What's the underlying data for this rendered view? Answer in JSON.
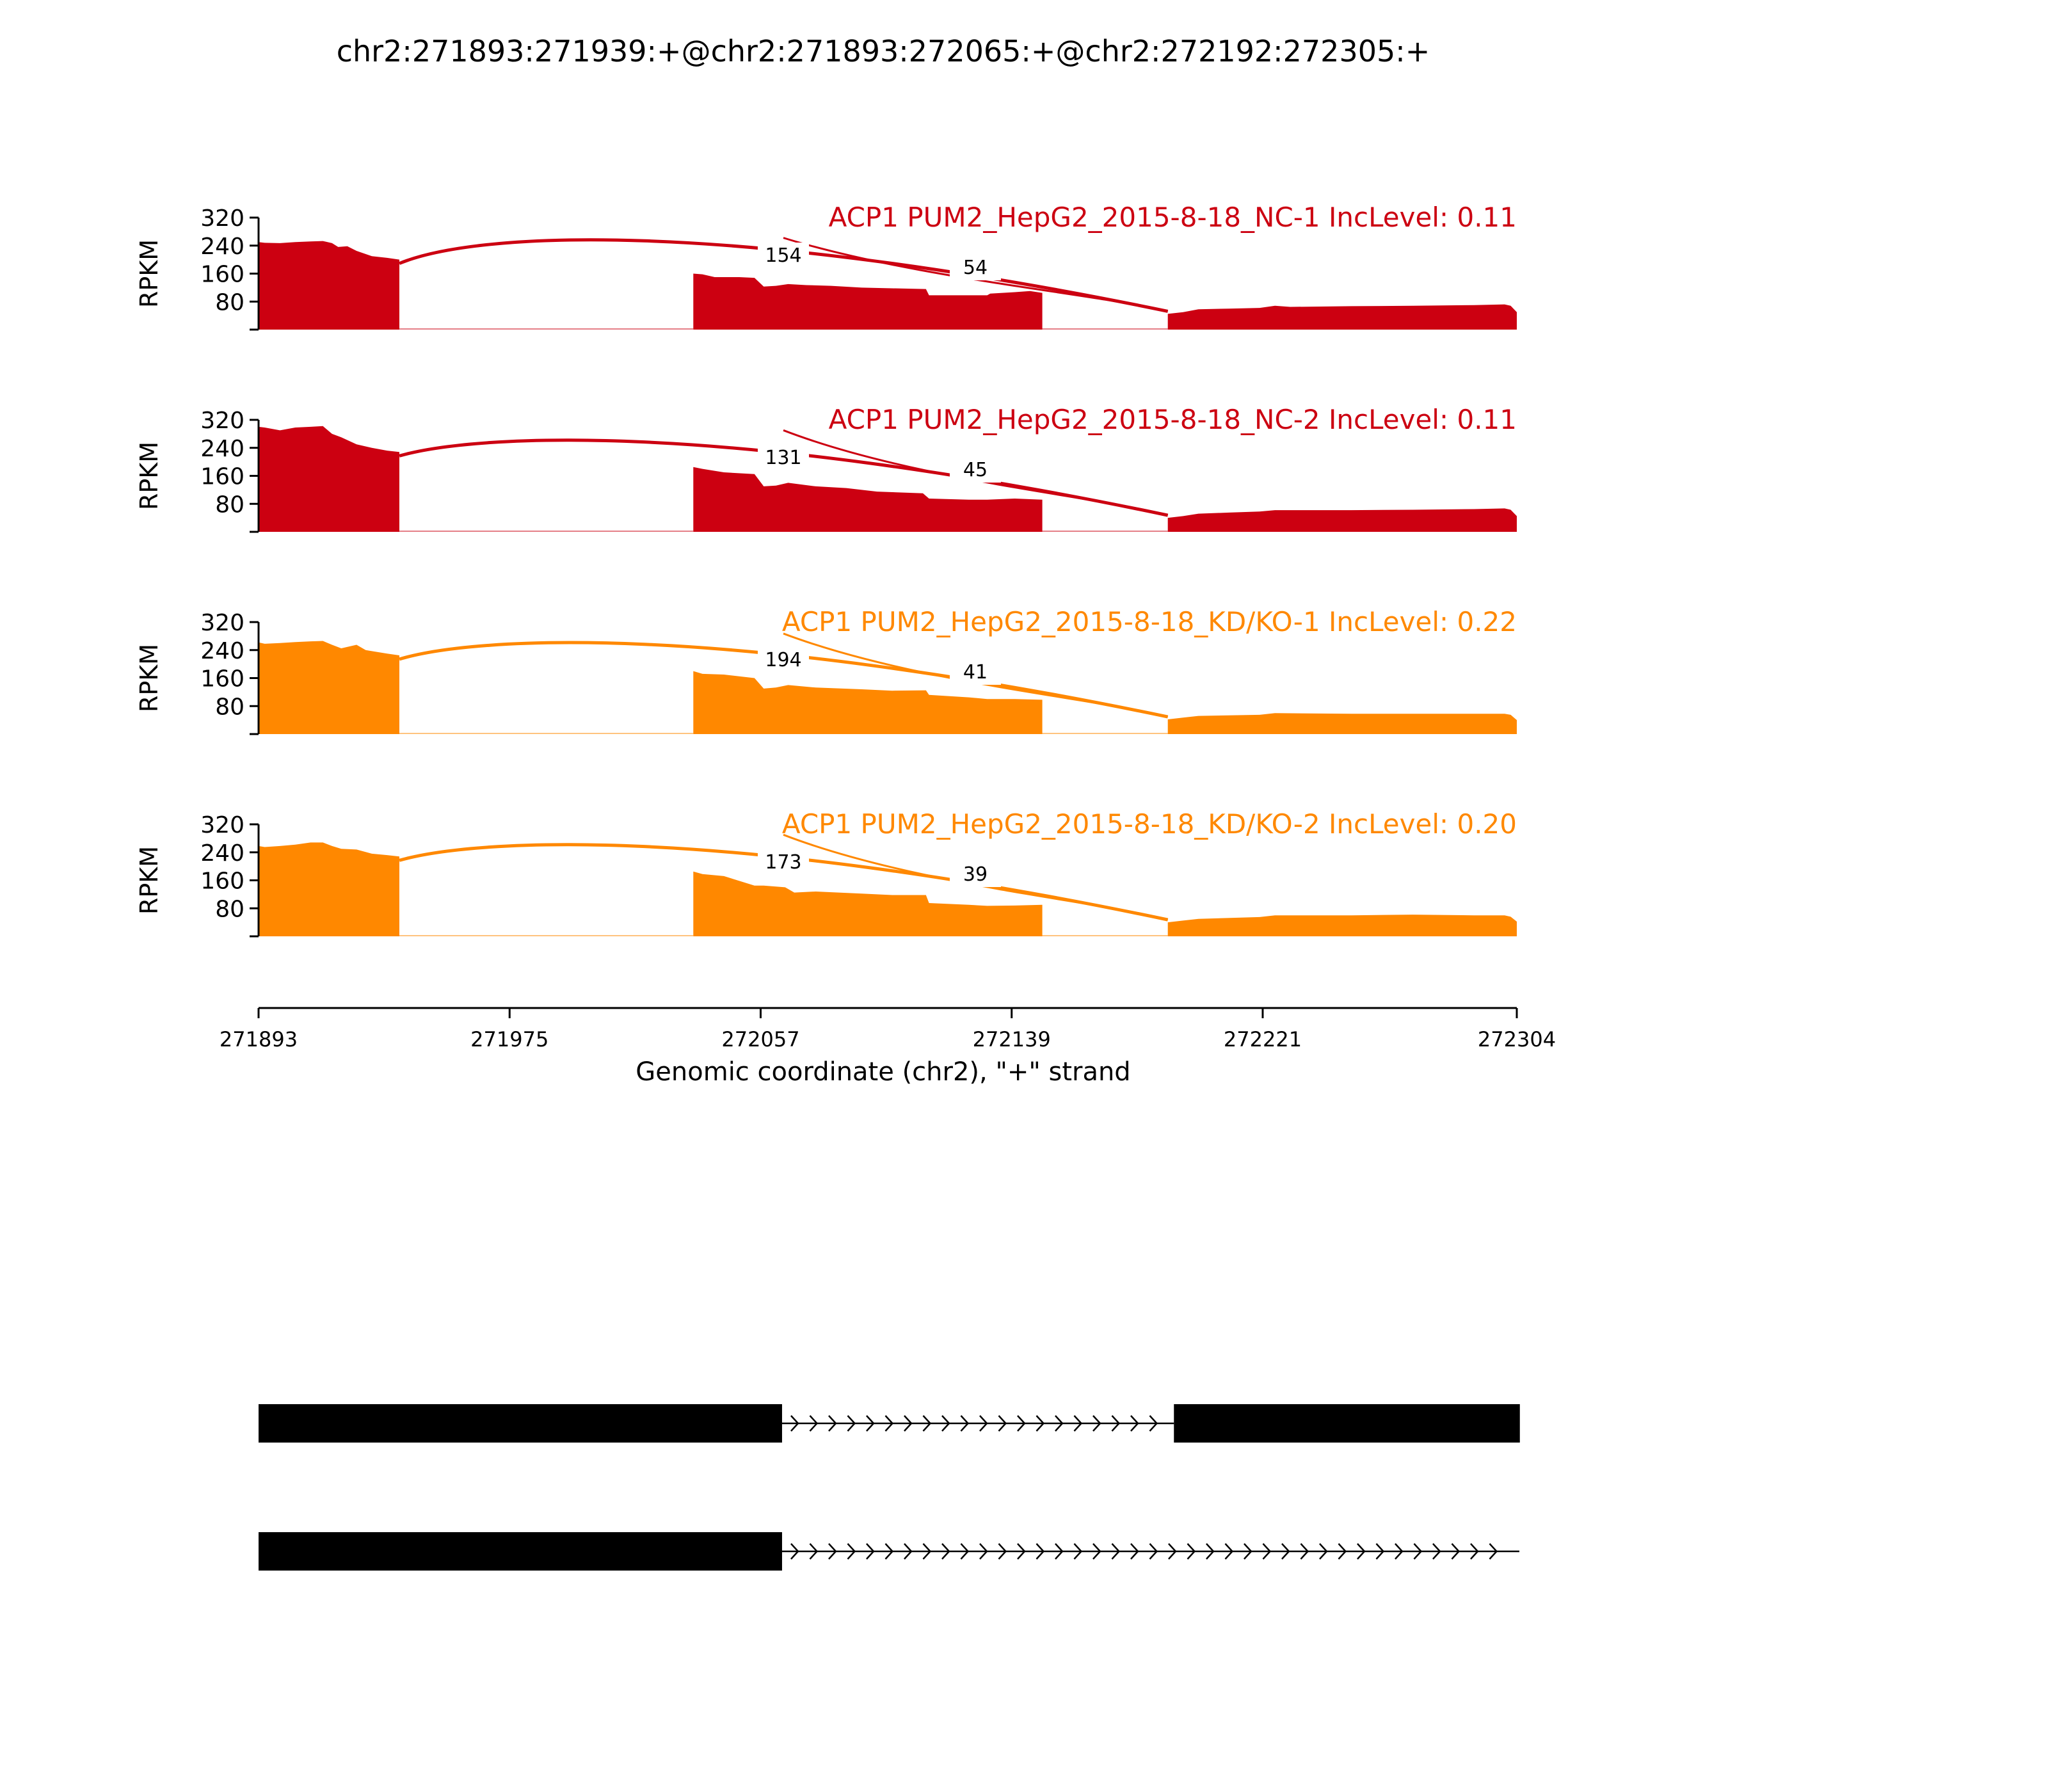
{
  "chart_data": {
    "type": "area",
    "title": "chr2:271893:271939:+@chr2:271893:272065:+@chr2:272192:272305:+",
    "xlabel": "Genomic coordinate (chr2), \"+\" strand",
    "ylabel": "RPKM",
    "xlim": [
      271893,
      272304
    ],
    "xticks": [
      "271893",
      "271975",
      "272057",
      "272139",
      "272221",
      "272304"
    ],
    "ylim": [
      0,
      320
    ],
    "yticks": [
      "80",
      "160",
      "240",
      "320"
    ],
    "grid": false,
    "exons": [
      [
        271893,
        271939
      ],
      [
        272035,
        272149
      ],
      [
        272190,
        272304
      ]
    ],
    "tracks": [
      {
        "title": "ACP1 PUM2_HepG2_2015-8-18_NC-1 IncLevel: 0.11",
        "color": "#cc0011",
        "junctions": [
          {
            "label": "154",
            "from": 271939,
            "to": 272035
          },
          {
            "label": "54",
            "from": 272149,
            "to": 272190
          }
        ],
        "coverage": [
          [
            [
              271893,
              250
            ],
            [
              271895,
              248
            ],
            [
              271900,
              247
            ],
            [
              271905,
              250
            ],
            [
              271910,
              252
            ],
            [
              271914,
              253
            ],
            [
              271917,
              247
            ],
            [
              271919,
              236
            ],
            [
              271922,
              238
            ],
            [
              271925,
              225
            ],
            [
              271930,
              210
            ],
            [
              271935,
              205
            ],
            [
              271939,
              200
            ]
          ],
          [
            [
              272035,
              160
            ],
            [
              272038,
              158
            ],
            [
              272042,
              150
            ],
            [
              272050,
              150
            ],
            [
              272055,
              148
            ],
            [
              272058,
              123
            ],
            [
              272062,
              125
            ],
            [
              272066,
              130
            ],
            [
              272072,
              127
            ],
            [
              272080,
              125
            ],
            [
              272090,
              120
            ],
            [
              272100,
              118
            ],
            [
              272111,
              116
            ],
            [
              272112,
              98
            ],
            [
              272125,
              98
            ],
            [
              272131,
              98
            ],
            [
              272132,
              103
            ],
            [
              272140,
              107
            ],
            [
              272145,
              110
            ],
            [
              272149,
              105
            ]
          ],
          [
            [
              272190,
              45
            ],
            [
              272195,
              50
            ],
            [
              272200,
              58
            ],
            [
              272210,
              60
            ],
            [
              272220,
              62
            ],
            [
              272225,
              68
            ],
            [
              272230,
              65
            ],
            [
              272250,
              67
            ],
            [
              272270,
              68
            ],
            [
              272290,
              70
            ],
            [
              272300,
              72
            ],
            [
              272302,
              68
            ],
            [
              272304,
              50
            ]
          ]
        ]
      },
      {
        "title": "ACP1 PUM2_HepG2_2015-8-18_NC-2 IncLevel: 0.11",
        "color": "#cc0011",
        "junctions": [
          {
            "label": "131",
            "from": 271939,
            "to": 272035
          },
          {
            "label": "45",
            "from": 272149,
            "to": 272190
          }
        ],
        "coverage": [
          [
            [
              271893,
              300
            ],
            [
              271895,
              298
            ],
            [
              271900,
              290
            ],
            [
              271905,
              298
            ],
            [
              271910,
              300
            ],
            [
              271914,
              302
            ],
            [
              271917,
              280
            ],
            [
              271920,
              270
            ],
            [
              271925,
              250
            ],
            [
              271930,
              240
            ],
            [
              271935,
              232
            ],
            [
              271939,
              228
            ]
          ],
          [
            [
              272035,
              185
            ],
            [
              272038,
              180
            ],
            [
              272045,
              170
            ],
            [
              272055,
              165
            ],
            [
              272058,
              130
            ],
            [
              272062,
              132
            ],
            [
              272066,
              140
            ],
            [
              272075,
              130
            ],
            [
              272085,
              125
            ],
            [
              272095,
              115
            ],
            [
              272110,
              110
            ],
            [
              272112,
              95
            ],
            [
              272125,
              92
            ],
            [
              272131,
              92
            ],
            [
              272140,
              95
            ],
            [
              272149,
              92
            ]
          ],
          [
            [
              272190,
              40
            ],
            [
              272195,
              45
            ],
            [
              272200,
              52
            ],
            [
              272210,
              55
            ],
            [
              272220,
              58
            ],
            [
              272225,
              62
            ],
            [
              272250,
              62
            ],
            [
              272270,
              63
            ],
            [
              272290,
              65
            ],
            [
              272300,
              67
            ],
            [
              272302,
              63
            ],
            [
              272304,
              45
            ]
          ]
        ]
      },
      {
        "title": "ACP1 PUM2_HepG2_2015-8-18_KD/KO-1 IncLevel: 0.22",
        "color": "#ff8800",
        "junctions": [
          {
            "label": "194",
            "from": 271939,
            "to": 272035
          },
          {
            "label": "41",
            "from": 272149,
            "to": 272190
          }
        ],
        "coverage": [
          [
            [
              271893,
              262
            ],
            [
              271895,
              258
            ],
            [
              271900,
              260
            ],
            [
              271905,
              263
            ],
            [
              271910,
              265
            ],
            [
              271914,
              266
            ],
            [
              271917,
              255
            ],
            [
              271920,
              245
            ],
            [
              271925,
              255
            ],
            [
              271928,
              240
            ],
            [
              271935,
              230
            ],
            [
              271939,
              225
            ]
          ],
          [
            [
              272035,
              180
            ],
            [
              272038,
              172
            ],
            [
              272045,
              170
            ],
            [
              272055,
              160
            ],
            [
              272058,
              130
            ],
            [
              272062,
              133
            ],
            [
              272066,
              140
            ],
            [
              272075,
              133
            ],
            [
              272090,
              128
            ],
            [
              272100,
              124
            ],
            [
              272111,
              125
            ],
            [
              272112,
              112
            ],
            [
              272125,
              105
            ],
            [
              272131,
              100
            ],
            [
              272140,
              100
            ],
            [
              272149,
              98
            ]
          ],
          [
            [
              272190,
              42
            ],
            [
              272195,
              47
            ],
            [
              272200,
              52
            ],
            [
              272220,
              55
            ],
            [
              272225,
              60
            ],
            [
              272250,
              58
            ],
            [
              272270,
              58
            ],
            [
              272290,
              58
            ],
            [
              272300,
              58
            ],
            [
              272302,
              55
            ],
            [
              272304,
              40
            ]
          ]
        ]
      },
      {
        "title": "ACP1 PUM2_HepG2_2015-8-18_KD/KO-2 IncLevel: 0.20",
        "color": "#ff8800",
        "junctions": [
          {
            "label": "173",
            "from": 271939,
            "to": 272035
          },
          {
            "label": "39",
            "from": 272149,
            "to": 272190
          }
        ],
        "coverage": [
          [
            [
              271893,
              258
            ],
            [
              271895,
              255
            ],
            [
              271900,
              258
            ],
            [
              271905,
              262
            ],
            [
              271910,
              268
            ],
            [
              271914,
              268
            ],
            [
              271917,
              258
            ],
            [
              271920,
              250
            ],
            [
              271925,
              248
            ],
            [
              271930,
              236
            ],
            [
              271935,
              232
            ],
            [
              271939,
              228
            ]
          ],
          [
            [
              272035,
              185
            ],
            [
              272038,
              178
            ],
            [
              272045,
              172
            ],
            [
              272055,
              145
            ],
            [
              272058,
              145
            ],
            [
              272065,
              140
            ],
            [
              272068,
              125
            ],
            [
              272075,
              128
            ],
            [
              272090,
              122
            ],
            [
              272100,
              118
            ],
            [
              272111,
              118
            ],
            [
              272112,
              95
            ],
            [
              272125,
              90
            ],
            [
              272131,
              87
            ],
            [
              272140,
              88
            ],
            [
              272149,
              90
            ]
          ],
          [
            [
              272190,
              40
            ],
            [
              272195,
              45
            ],
            [
              272200,
              50
            ],
            [
              272220,
              55
            ],
            [
              272225,
              60
            ],
            [
              272250,
              60
            ],
            [
              272270,
              62
            ],
            [
              272290,
              60
            ],
            [
              272300,
              60
            ],
            [
              272302,
              56
            ],
            [
              272304,
              42
            ]
          ]
        ]
      }
    ],
    "isoforms": [
      {
        "exons": [
          [
            271893,
            272064
          ],
          [
            272192,
            272305
          ]
        ],
        "intron": [
          272064,
          272192
        ]
      },
      {
        "exons": [
          [
            271893,
            272064
          ]
        ],
        "intron": [
          272064,
          272305
        ]
      }
    ]
  }
}
